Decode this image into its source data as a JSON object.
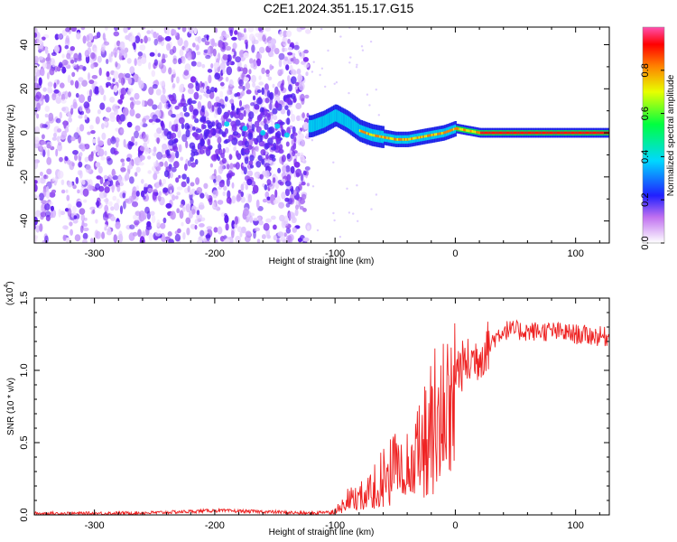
{
  "title": "C2E1.2024.351.15.17.G15",
  "chart_data": [
    {
      "type": "heatmap",
      "xlabel": "Height of straight line (km)",
      "ylabel": "Frequency (Hz)",
      "xlim": [
        -350,
        128
      ],
      "ylim": [
        -50,
        48
      ],
      "x_ticks": [
        -300,
        -200,
        -100,
        0,
        100
      ],
      "y_ticks": [
        -40,
        -20,
        0,
        20,
        40
      ],
      "x_tick_labels": [
        "-300",
        "-200",
        "-100",
        "0",
        "100"
      ],
      "y_tick_labels": [
        "-40",
        "-20",
        "0",
        "20",
        "40"
      ],
      "colorbar": {
        "label": "Normalized spectral amplitude",
        "range": [
          0,
          1
        ],
        "ticks": [
          0.0,
          0.2,
          0.4,
          0.6,
          0.8
        ],
        "tick_labels": [
          "0.0",
          "0.2",
          "0.4",
          "0.6",
          "0.8"
        ],
        "colormap": [
          "#ffffff",
          "#a000e0",
          "#2020ff",
          "#00e0ff",
          "#00ff40",
          "#f0ff00",
          "#ff8000",
          "#ff0000",
          "#ff60c0"
        ]
      },
      "regions": [
        {
          "x_range": [
            -350,
            -122
          ],
          "description_level": "noise",
          "freq_spread_hz": 48,
          "amplitude": 0.15
        },
        {
          "x_range": [
            -122,
            -60
          ],
          "description_level": "weak signal",
          "freq_center_hz": 4,
          "amplitude": 0.35
        },
        {
          "x_range": [
            -60,
            128
          ],
          "description_level": "strong carrier",
          "freq_center_hz": 0,
          "amplitude": 0.95
        }
      ],
      "carrier_track": {
        "x": [
          -120,
          -110,
          -100,
          -90,
          -80,
          -70,
          -60,
          -50,
          -40,
          -30,
          -20,
          -10,
          0,
          10,
          20,
          40,
          60,
          80,
          100,
          120
        ],
        "freq": [
          3,
          5,
          8,
          5,
          1,
          -1,
          -2,
          -3,
          -3,
          -2,
          -1,
          0,
          2,
          1,
          0,
          0,
          0,
          0,
          0,
          0
        ]
      }
    },
    {
      "type": "line",
      "xlabel": "Height of straight line (km)",
      "ylabel": "SNR (10 * v/v)",
      "y_scale_label": "(x10",
      "y_scale_exponent": "4",
      "xlim": [
        -350,
        128
      ],
      "ylim": [
        0,
        1.5
      ],
      "x_ticks": [
        -300,
        -200,
        -100,
        0,
        100
      ],
      "y_ticks": [
        0.0,
        0.5,
        1.0,
        1.5
      ],
      "x_tick_labels": [
        "-300",
        "-200",
        "-100",
        "0",
        "100"
      ],
      "y_tick_labels": [
        "0.0",
        "0.5",
        "1.0",
        "1.5"
      ],
      "color": "#ee2222",
      "series": [
        {
          "x": [
            -350,
            -300,
            -250,
            -200,
            -150,
            -120,
            -100,
            -90,
            -80,
            -70,
            -60,
            -50,
            -40,
            -30,
            -20,
            -10,
            0,
            10,
            20,
            30,
            40,
            60,
            80,
            100,
            128
          ],
          "values": [
            0.01,
            0.01,
            0.015,
            0.03,
            0.02,
            0.01,
            0.03,
            0.12,
            0.14,
            0.2,
            0.3,
            0.37,
            0.4,
            0.5,
            0.72,
            0.9,
            1.0,
            1.05,
            1.1,
            1.2,
            1.28,
            1.27,
            1.27,
            1.25,
            1.23
          ]
        }
      ]
    }
  ]
}
